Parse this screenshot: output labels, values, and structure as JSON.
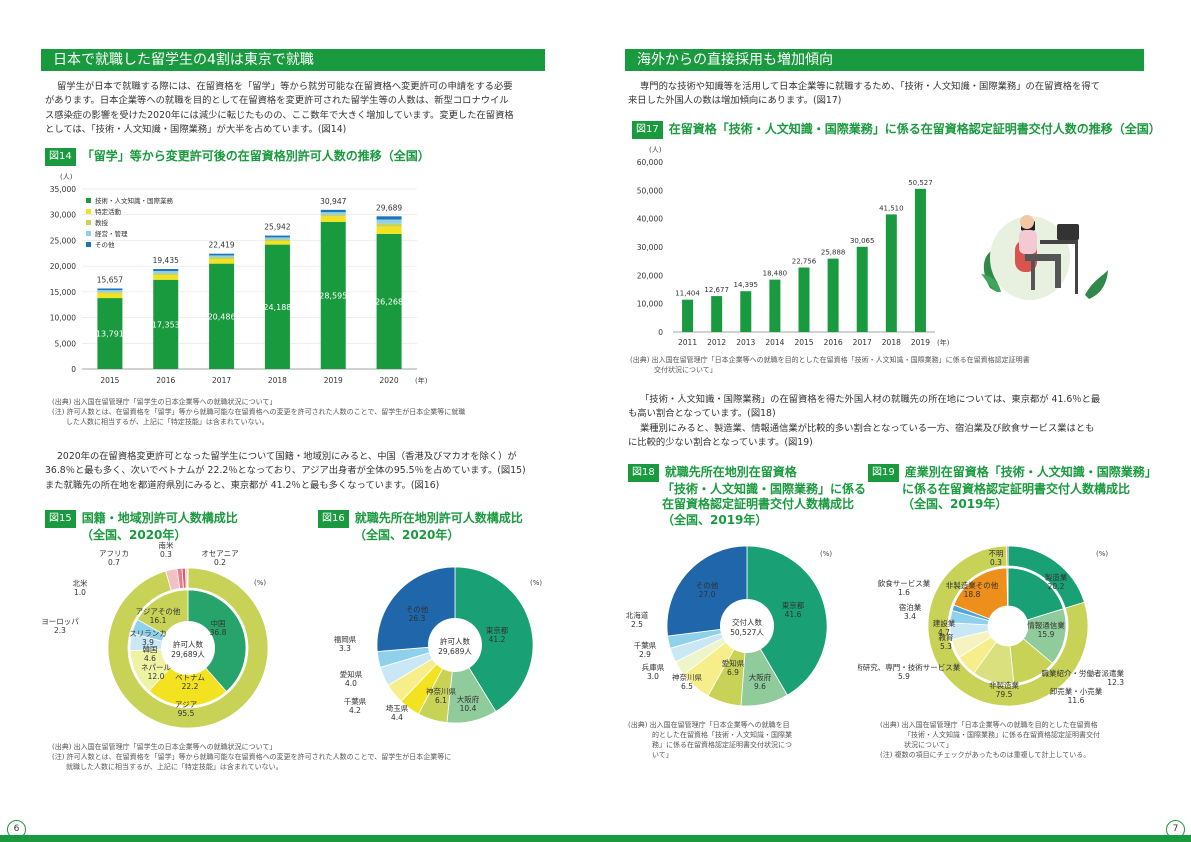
{
  "left": {
    "banner": "日本で就職した留学生の4割は東京で就職",
    "intro": [
      "留学生が日本で就職する際には、在留資格を「留学」等から就労可能な在留資格へ変更許可の申請をする必要",
      "があります。日本企業等への就職を目的として在留資格を変更許可された留学生等の人数は、新型コロナウイル",
      "ス感染症の影響を受けた2020年には減少に転じたものの、ここ数年で大きく増加しています。変更した在留資格",
      "としては、「技術・人文知識・国際業務」が大半を占めています。(図14)"
    ],
    "fig14": {
      "num": "図14",
      "title": "「留学」等から変更許可後の在留資格別許可人数の推移（全国）",
      "source": "(出典) 出入国在留管理庁「留学生の日本企業等への就職状況について」",
      "note": [
        "(注) 許可人数とは、在留資格を「留学」等から就職可能な在留資格への変更を許可された人数のことで、留学生が日本企業等に就職",
        "した人数に相当するが、上記に「特定技能」は含まれていない。"
      ]
    },
    "para2": [
      "2020年の在留資格変更許可となった留学生について国籍・地域別にみると、中国（香港及びマカオを除く）が",
      "36.8％と最も多く、次いでベトナムが 22.2％となっており、アジア出身者が全体の95.5％を占めています。(図15)",
      "また就職先の所在地を都道府県別にみると、東京都が 41.2％と最も多くなっています。(図16)"
    ],
    "fig15": {
      "num": "図15",
      "title": [
        "国籍・地域別許可人数構成比",
        "（全国、2020年）"
      ]
    },
    "fig16": {
      "num": "図16",
      "title": [
        "就職先所在地別許可人数構成比",
        "（全国、2020年）"
      ]
    },
    "source2": "(出典) 出入国在留管理庁「留学生の日本企業等への就職状況について」",
    "note2": [
      "(注) 許可人数とは、在留資格を「留学」等から就職可能な在留資格への変更を許可された人数のことで、留学生が日本企業等に",
      "就職した人数に相当するが、上記に「特定技能」は含まれていない。"
    ],
    "page": "6"
  },
  "right": {
    "banner": "海外からの直接採用も増加傾向",
    "intro": [
      "専門的な技術や知識等を活用して日本企業等に就職するため、「技術・人文知識・国際業務」の在留資格を得て",
      "来日した外国人の数は増加傾向にあります。(図17)"
    ],
    "fig17": {
      "num": "図17",
      "title": "在留資格「技術・人文知識・国際業務」に係る在留資格認定証明書交付人数の推移（全国）",
      "source": [
        "(出典) 出入国在留管理庁「日本企業等への就職を目的とした在留資格「技術・人文知識・国際業務」に係る在留資格認定証明書",
        "交付状況について」"
      ]
    },
    "para2": [
      "「技術・人文知識・国際業務」の在留資格を得た外国人材の就職先の所在地については、東京都が 41.6％と最",
      "も高い割合となっています。(図18)",
      "業種別にみると、製造業、情報通信業が比較的多い割合となっている一方、宿泊業及び飲食サービス業はとも",
      "に比較的少ない割合となっています。(図19)"
    ],
    "fig18": {
      "num": "図18",
      "title": [
        "就職先所在地別在留資格",
        "「技術・人文知識・国際業務」に係る",
        "在留資格認定証明書交付人数構成比",
        "（全国、2019年）"
      ],
      "source": [
        "(出典) 出入国在留管理庁「日本企業等への就職を目",
        "的とした在留資格「技術・人文知識・国際業",
        "務」に係る在留資格認定証明書交付状況につ",
        "いて」"
      ]
    },
    "fig19": {
      "num": "図19",
      "title": [
        "産業別在留資格「技術・人文知識・国際業務」",
        "に係る在留資格認定証明書交付人数構成比",
        "（全国、2019年）"
      ],
      "source": [
        "(出典) 出入国在留管理庁「日本企業等への就職を目的とした在留資格",
        "「技術・人文知識・国際業務」に係る在留資格認定証明書交付",
        "状況について」"
      ],
      "note": "(注) 複数の項目にチェックがあったものは重複して計上している。"
    },
    "page": "7"
  },
  "colors": {
    "green": "#1a9a3e",
    "yellow": "#f2e21f",
    "olive": "#c7d256",
    "lightblue": "#8fd1ea",
    "blue": "#1f74b8"
  },
  "chart_data": [
    {
      "id": "fig14",
      "type": "bar",
      "stacked": true,
      "categories": [
        "2015",
        "2016",
        "2017",
        "2018",
        "2019",
        "2020"
      ],
      "xunit": "(年)",
      "yunit": "(人)",
      "ylim": [
        0,
        35000
      ],
      "yticks": [
        "35,000",
        "30,000",
        "25,000",
        "20,000",
        "15,000",
        "10,000",
        "5,000",
        "0"
      ],
      "totals": [
        15657,
        19435,
        22419,
        25942,
        30947,
        29689
      ],
      "total_labels": [
        "15,657",
        "19,435",
        "22,419",
        "25,942",
        "30,947",
        "29,689"
      ],
      "main_labels": [
        "13,791",
        "17,353",
        "20,486",
        "24,188",
        "28,595",
        "26,268"
      ],
      "series": [
        {
          "name": "技術・人文知識・国際業務",
          "color": "#1a9a3e",
          "values": [
            13791,
            17353,
            20486,
            24188,
            28595,
            26268
          ]
        },
        {
          "name": "特定活動",
          "color": "#f2e21f",
          "values": [
            900,
            900,
            900,
            700,
            1100,
            1400
          ]
        },
        {
          "name": "教授",
          "color": "#c7d256",
          "values": [
            250,
            300,
            300,
            300,
            300,
            600
          ]
        },
        {
          "name": "経営・管理",
          "color": "#8fd1ea",
          "values": [
            400,
            500,
            400,
            400,
            500,
            800
          ]
        },
        {
          "name": "その他",
          "color": "#1f74b8",
          "values": [
            316,
            382,
            333,
            354,
            452,
            621
          ]
        }
      ],
      "legend": "top-left"
    },
    {
      "id": "fig15",
      "type": "pie",
      "unit": "(%)",
      "center": [
        "許可人数",
        "29,689人"
      ],
      "outer": [
        {
          "label": "アジア",
          "value": "95.5",
          "v": 95.5,
          "color": "#c7d256"
        },
        {
          "label": "ヨーロッパ",
          "value": "2.3",
          "v": 2.3,
          "color": "#f3c0c4"
        },
        {
          "label": "北米",
          "value": "1.0",
          "v": 1.0,
          "color": "#e87f8a"
        },
        {
          "label": "アフリカ",
          "value": "0.7",
          "v": 0.7,
          "color": "#e35b6b"
        },
        {
          "label": "南米",
          "value": "0.3",
          "v": 0.3,
          "color": "#f08c98"
        },
        {
          "label": "オセアニア",
          "value": "0.2",
          "v": 0.2,
          "color": "#f4a9b2"
        }
      ],
      "inner": [
        {
          "label": "中国",
          "value": "36.8",
          "v": 36.8,
          "color": "#26a46b"
        },
        {
          "label": "ベトナム",
          "value": "22.2",
          "v": 22.2,
          "color": "#f2e21f"
        },
        {
          "label": "ネパール",
          "value": "12.0",
          "v": 12.0,
          "color": "#eef2a3"
        },
        {
          "label": "韓国",
          "value": "4.6",
          "v": 4.6,
          "color": "#c9e7f5"
        },
        {
          "label": "スリランカ",
          "value": "3.9",
          "v": 3.9,
          "color": "#8fd1ea"
        },
        {
          "label": "アジアその他",
          "value": "16.1",
          "v": 16.1,
          "color": "#c7d256"
        }
      ]
    },
    {
      "id": "fig16",
      "type": "pie",
      "unit": "(%)",
      "center": [
        "許可人数",
        "29,689人"
      ],
      "slices": [
        {
          "label": "東京都",
          "value": "41.2",
          "v": 41.2,
          "color": "#1aa075"
        },
        {
          "label": "大阪府",
          "value": "10.4",
          "v": 10.4,
          "color": "#8fcb9b"
        },
        {
          "label": "神奈川県",
          "value": "6.1",
          "v": 6.1,
          "color": "#c7d256"
        },
        {
          "label": "埼玉県",
          "value": "4.4",
          "v": 4.4,
          "color": "#f2e21f"
        },
        {
          "label": "千葉県",
          "value": "4.2",
          "v": 4.2,
          "color": "#f6ee8a"
        },
        {
          "label": "愛知県",
          "value": "4.0",
          "v": 4.0,
          "color": "#c9e7f5"
        },
        {
          "label": "福岡県",
          "value": "3.3",
          "v": 3.3,
          "color": "#8fd1ea"
        },
        {
          "label": "その他",
          "value": "26.3",
          "v": 26.3,
          "color": "#1f66aa"
        }
      ]
    },
    {
      "id": "fig17",
      "type": "bar",
      "categories": [
        "2011",
        "2012",
        "2013",
        "2014",
        "2015",
        "2016",
        "2017",
        "2018",
        "2019"
      ],
      "xunit": "(年)",
      "yunit": "(人)",
      "values": [
        11404,
        12677,
        14395,
        18480,
        22756,
        25888,
        30065,
        41510,
        50527
      ],
      "value_labels": [
        "11,404",
        "12,677",
        "14,395",
        "18,480",
        "22,756",
        "25,888",
        "30,065",
        "41,510",
        "50,527"
      ],
      "ylim": [
        0,
        60000
      ],
      "yticks": [
        "60,000",
        "50,000",
        "40,000",
        "30,000",
        "20,000",
        "10,000",
        "0"
      ],
      "color": "#1a9a3e"
    },
    {
      "id": "fig18",
      "type": "pie",
      "unit": "(%)",
      "center": [
        "交付人数",
        "50,527人"
      ],
      "slices": [
        {
          "label": "東京都",
          "value": "41.6",
          "v": 41.6,
          "color": "#1aa075"
        },
        {
          "label": "大阪府",
          "value": "9.6",
          "v": 9.6,
          "color": "#8fcb9b"
        },
        {
          "label": "愛知県",
          "value": "6.9",
          "v": 6.9,
          "color": "#c7d256"
        },
        {
          "label": "神奈川県",
          "value": "6.5",
          "v": 6.5,
          "color": "#f6ee8a"
        },
        {
          "label": "兵庫県",
          "value": "3.0",
          "v": 3.0,
          "color": "#eef5c8"
        },
        {
          "label": "千葉県",
          "value": "2.9",
          "v": 2.9,
          "color": "#c9e7f5"
        },
        {
          "label": "北海道",
          "value": "2.5",
          "v": 2.5,
          "color": "#8fd1ea"
        },
        {
          "label": "その他",
          "value": "27.0",
          "v": 27.0,
          "color": "#1f66aa"
        }
      ]
    },
    {
      "id": "fig19",
      "type": "pie",
      "unit": "(%)",
      "slices": [
        {
          "label": "製造業",
          "value": "20.2",
          "v": 20.2,
          "color": "#1aa075"
        },
        {
          "label": "情報通信業",
          "value": "15.9",
          "v": 15.9,
          "color": "#8fcb9b"
        },
        {
          "label": "職業紹介・労働者派遣業",
          "value": "12.3",
          "v": 12.3,
          "color": "#c7d256"
        },
        {
          "label": "卸売業・小売業",
          "value": "11.6",
          "v": 11.6,
          "color": "#d9e07d"
        },
        {
          "label": "非製造業",
          "value": "79.5",
          "v": 79.5,
          "color": "#f2e21f"
        },
        {
          "label": "学術研究、専門・技術サービス業",
          "value": "5.9",
          "v": 5.9,
          "color": "#f6ee8a"
        },
        {
          "label": "教育",
          "value": "5.3",
          "v": 5.3,
          "color": "#f7f3c0"
        },
        {
          "label": "建設業",
          "value": "4.7",
          "v": 4.7,
          "color": "#c9e7f5"
        },
        {
          "label": "宿泊業",
          "value": "3.4",
          "v": 3.4,
          "color": "#8fd1ea"
        },
        {
          "label": "飲食サービス業",
          "value": "1.6",
          "v": 1.6,
          "color": "#4fa6d8"
        },
        {
          "label": "非製造業その他",
          "value": "18.8",
          "v": 18.8,
          "color": "#ef8f1b"
        },
        {
          "label": "不明",
          "value": "0.3",
          "v": 0.3,
          "color": "#e85a6b"
        }
      ]
    }
  ]
}
